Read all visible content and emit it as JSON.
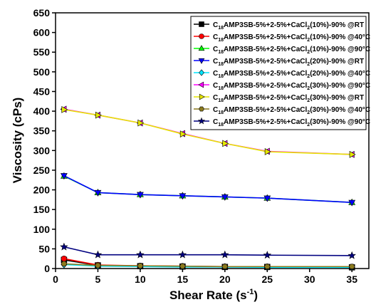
{
  "chart_data": {
    "type": "line",
    "xlabel": "Shear Rate (s⁻¹)",
    "xlabel_main": "Shear Rate (s",
    "xlabel_sup": "-1",
    "xlabel_close": ")",
    "ylabel": "Viscosity (cPs)",
    "xlim": [
      0,
      37
    ],
    "ylim": [
      0,
      650
    ],
    "xticks": [
      0,
      5,
      10,
      15,
      20,
      25,
      30,
      35
    ],
    "yticks": [
      0,
      50,
      100,
      150,
      200,
      250,
      300,
      350,
      400,
      450,
      500,
      550,
      600,
      650
    ],
    "grid": false,
    "legend_position": "top-right",
    "x": [
      1,
      5,
      10,
      15,
      20,
      25,
      35
    ],
    "series": [
      {
        "name": "C18AMP3SB-5%+2-5%+CaCl2(10%)-90% @RT",
        "label_pre": "C",
        "label_sub": "18",
        "label_mid": "AMP3SB-5%+2-5%+CaCl",
        "label_sub2": "2",
        "label_post": "(10%)-90% @RT",
        "marker": "square",
        "color": "#000000",
        "values": [
          22,
          8,
          6,
          5,
          4,
          4,
          3
        ]
      },
      {
        "name": "C18AMP3SB-5%+2-5%+CaCl2(10%)-90% @40°C",
        "label_pre": "C",
        "label_sub": "18",
        "label_mid": "AMP3SB-5%+2-5%+CaCl",
        "label_sub2": "2",
        "label_post": "(10%)-90% @40°C",
        "marker": "circle",
        "color": "#ff0000",
        "values": [
          25,
          9,
          7,
          6,
          5,
          5,
          4
        ]
      },
      {
        "name": "C18AMP3SB-5%+2-5%+CaCl2(10%)-90% @90°C",
        "label_pre": "C",
        "label_sub": "18",
        "label_mid": "AMP3SB-5%+2-5%+CaCl",
        "label_sub2": "2",
        "label_post": "(10%)-90% @90°C",
        "marker": "triangle-up",
        "color": "#00ff00",
        "values": [
          235,
          193,
          188,
          185,
          182,
          179,
          168
        ]
      },
      {
        "name": "C18AMP3SB-5%+2-5%+CaCl2(20%)-90% @RT",
        "label_pre": "C",
        "label_sub": "18",
        "label_mid": "AMP3SB-5%+2-5%+CaCl",
        "label_sub2": "2",
        "label_post": "(20%)-90% @RT",
        "marker": "triangle-down",
        "color": "#0000ff",
        "values": [
          236,
          193,
          188,
          185,
          182,
          179,
          168
        ]
      },
      {
        "name": "C18AMP3SB-5%+2-5%+CaCl2(20%)-90% @40°C",
        "label_pre": "C",
        "label_sub": "18",
        "label_mid": "AMP3SB-5%+2-5%+CaCl",
        "label_sub2": "2",
        "label_post": "(20%)-90% @40°C",
        "marker": "diamond",
        "color": "#00e5ff",
        "values": [
          10,
          6,
          5,
          4,
          4,
          3,
          3
        ]
      },
      {
        "name": "C18AMP3SB-5%+2-5%+CaCl2(30%)-90% @90°C",
        "label_pre": "C",
        "label_sub": "18",
        "label_mid": "AMP3SB-5%+2-5%+CaCl",
        "label_sub2": "2",
        "label_post": "(30%)-90% @90°C",
        "marker": "triangle-left",
        "color": "#ff00ff",
        "values": [
          405,
          390,
          370,
          343,
          318,
          298,
          290
        ]
      },
      {
        "name": "C18AMP3SB-5%+2-5%+CaCl2(30%)-90% @RT",
        "label_pre": "C",
        "label_sub": "18",
        "label_mid": "AMP3SB-5%+2-5%+CaCl",
        "label_sub2": "2",
        "label_post": "(30%)-90% @RT",
        "marker": "triangle-right",
        "color": "#e6e600",
        "values": [
          404,
          390,
          370,
          342,
          318,
          297,
          290
        ]
      },
      {
        "name": "C18AMP3SB-5%+2-5%+CaCl2(30%)-90% @40°C",
        "label_pre": "C",
        "label_sub": "18",
        "label_mid": "AMP3SB-5%+2-5%+CaCl",
        "label_sub2": "2",
        "label_post": "(30%)-90% @40°C",
        "marker": "hexagon",
        "color": "#8b7a1e",
        "values": [
          12,
          8,
          7,
          6,
          5,
          5,
          5
        ]
      },
      {
        "name": "C18AMP3SB-5%+2-5%+CaCl2(30%)-90% @90°C",
        "label_pre": "C",
        "label_sub": "18",
        "label_mid": "AMP3SB-5%+2-5%+CaCl",
        "label_sub2": "2",
        "label_post": "(30%)-90% @90°C",
        "marker": "star",
        "color": "#000080",
        "values": [
          55,
          35,
          35,
          35,
          35,
          34,
          33
        ]
      }
    ]
  }
}
